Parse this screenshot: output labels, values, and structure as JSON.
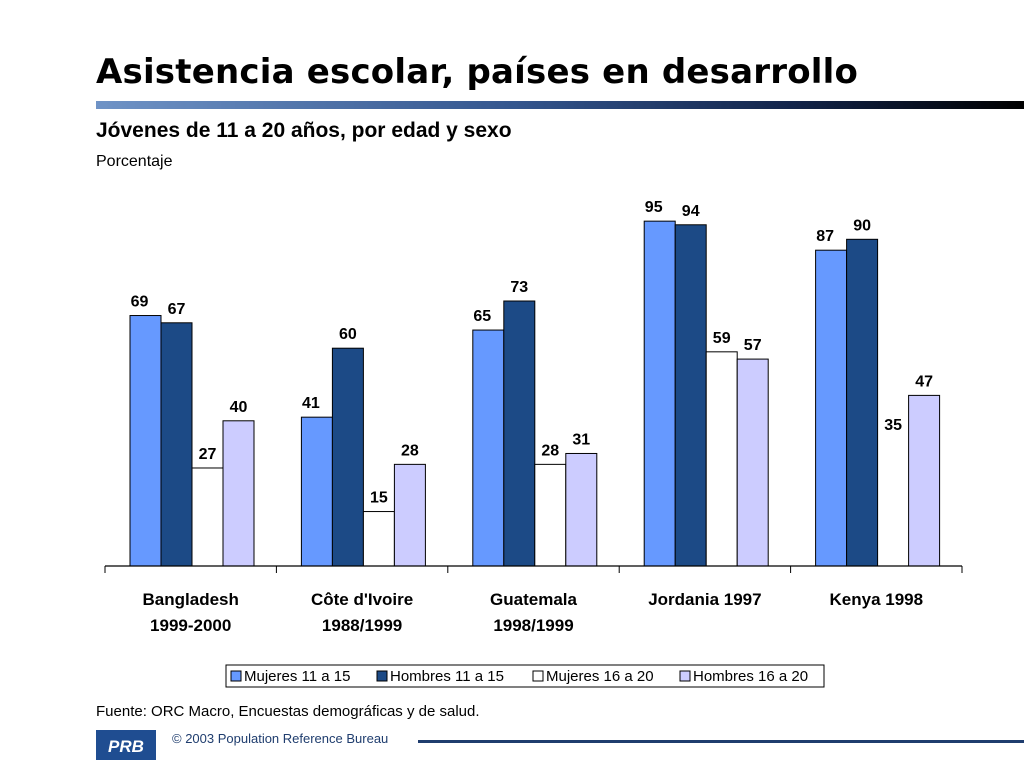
{
  "slide": {
    "title": "Asistencia escolar, países en desarrollo",
    "subtitle": "Jóvenes de 11 a 20 años, por edad y sexo",
    "unit_label": "Porcentaje",
    "source": "Fuente: ORC Macro, Encuestas demográficas y de salud.",
    "copyright": "© 2003 Population Reference Bureau",
    "logo_text": "PRB"
  },
  "colors": {
    "title_rule_start": "#6f93c6",
    "title_rule_end": "#000000",
    "footer_blue": "#1f4d91"
  },
  "chart_data": {
    "type": "bar",
    "title": "",
    "xlabel": "",
    "ylabel": "Porcentaje",
    "ylim": [
      0,
      100
    ],
    "grid": false,
    "legend_position": "bottom",
    "categories": [
      [
        "Bangladesh",
        "1999-2000"
      ],
      [
        "Côte d'Ivoire",
        "1988/1999"
      ],
      [
        "Guatemala",
        "1998/1999"
      ],
      [
        "Jordania 1997"
      ],
      [
        "Kenya 1998"
      ]
    ],
    "series": [
      {
        "name": "Mujeres 11 a 15",
        "color": "#6699ff",
        "values": [
          69,
          41,
          65,
          95,
          87
        ]
      },
      {
        "name": "Hombres 11 a 15",
        "color": "#1c4a86",
        "values": [
          67,
          60,
          73,
          94,
          90
        ]
      },
      {
        "name": "Mujeres 16 a 20",
        "color": "#ffffff",
        "values": [
          27,
          15,
          28,
          59,
          35
        ]
      },
      {
        "name": "Hombres 16 a 20",
        "color": "#ccccff",
        "values": [
          40,
          28,
          31,
          57,
          47
        ]
      }
    ],
    "missing_values": [
      {
        "series": "Mujeres 16 a 20",
        "category": "Kenya 1998"
      }
    ]
  }
}
